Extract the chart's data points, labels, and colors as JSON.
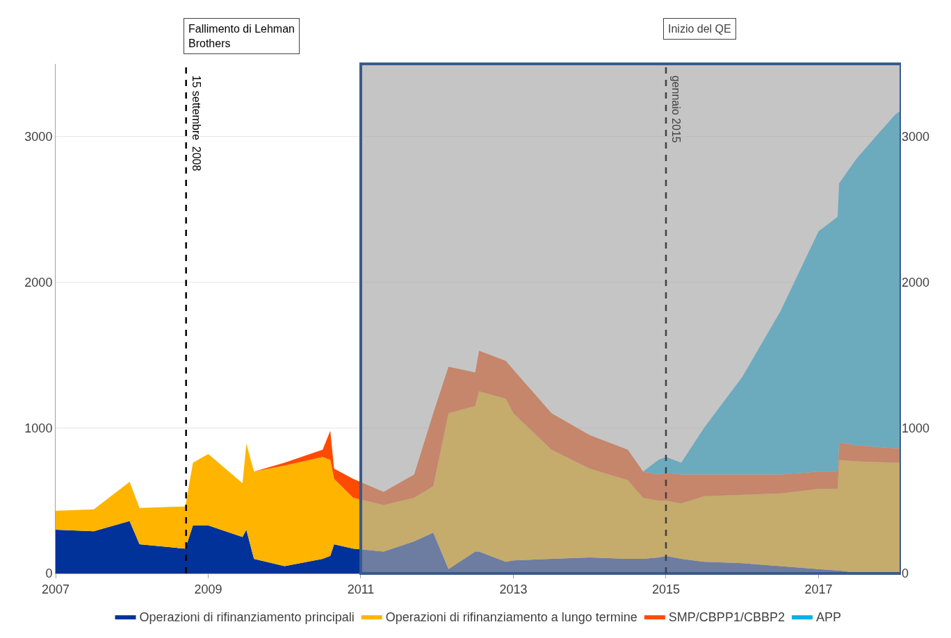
{
  "chart_data": {
    "type": "area",
    "stacked": true,
    "x": [
      2007.0,
      2007.5,
      2007.97,
      2008.1,
      2008.7,
      2008.8,
      2009.0,
      2009.45,
      2009.5,
      2009.6,
      2010.0,
      2010.5,
      2010.6,
      2010.65,
      2010.9,
      2011.3,
      2011.7,
      2011.95,
      2012.15,
      2012.5,
      2012.55,
      2012.9,
      2013.0,
      2013.5,
      2014.0,
      2014.5,
      2014.7,
      2014.9,
      2015.0,
      2015.2,
      2015.5,
      2016.0,
      2016.5,
      2017.0,
      2017.25,
      2017.27,
      2017.5,
      2018.0,
      2018.08
    ],
    "series": [
      {
        "name": "Operazioni di rifinanziamento principali",
        "color": "#003299",
        "values": [
          300,
          290,
          360,
          200,
          170,
          330,
          330,
          250,
          300,
          100,
          50,
          100,
          120,
          200,
          170,
          150,
          220,
          280,
          30,
          150,
          150,
          80,
          90,
          100,
          110,
          100,
          100,
          110,
          120,
          100,
          80,
          70,
          50,
          30,
          20,
          20,
          5,
          3,
          3
        ]
      },
      {
        "name": "Operazioni di rifinanziamento a lungo termine",
        "color": "#ffb400",
        "values": [
          130,
          150,
          270,
          250,
          290,
          430,
          490,
          370,
          590,
          600,
          690,
          700,
          660,
          450,
          350,
          320,
          300,
          320,
          1070,
          1000,
          1100,
          1120,
          1010,
          750,
          610,
          540,
          420,
          390,
          380,
          380,
          450,
          470,
          500,
          550,
          560,
          760,
          765,
          757,
          757
        ]
      },
      {
        "name": "SMP/CBPP1/CBBP2",
        "color": "#ff4b00",
        "values": [
          0,
          0,
          0,
          0,
          0,
          0,
          0,
          0,
          0,
          0,
          20,
          50,
          200,
          70,
          130,
          90,
          160,
          500,
          320,
          230,
          280,
          260,
          300,
          250,
          230,
          210,
          180,
          180,
          190,
          200,
          150,
          140,
          130,
          120,
          120,
          120,
          110,
          100,
          100
        ]
      },
      {
        "name": "APP",
        "color": "#00b1ea",
        "values": [
          0,
          0,
          0,
          0,
          0,
          0,
          0,
          0,
          0,
          0,
          0,
          0,
          0,
          0,
          0,
          0,
          0,
          0,
          0,
          0,
          0,
          0,
          0,
          0,
          0,
          0,
          0,
          100,
          110,
          80,
          320,
          670,
          1120,
          1650,
          1750,
          1780,
          1970,
          2290,
          2320
        ]
      }
    ],
    "xlim": [
      2007,
      2018.08
    ],
    "xticks": [
      2007,
      2009,
      2011,
      2013,
      2015,
      2017
    ],
    "ylim": [
      0,
      3500
    ],
    "yticks": [
      0,
      1000,
      2000,
      3000
    ],
    "y2lim": [
      0,
      3500
    ],
    "y2ticks": [
      0,
      1000,
      2000,
      3000
    ],
    "grid": "y",
    "legend": "bottom",
    "ref_lines": [
      {
        "axis": "x",
        "value": 2008.71,
        "label": "15 settembre  2008",
        "color": "#000000",
        "line_style": "dashed"
      },
      {
        "axis": "x",
        "value": 2015.0,
        "label": "gennaio 2015",
        "color": "#404040",
        "line_style": "dashed"
      }
    ],
    "bands": [
      {
        "axis": "x",
        "from": 2011.0,
        "to": 2018.08,
        "color": "#a6a6a6"
      }
    ],
    "annotations": [
      "Fallimento di Lehman Brothers",
      "Inizio del QE"
    ]
  }
}
